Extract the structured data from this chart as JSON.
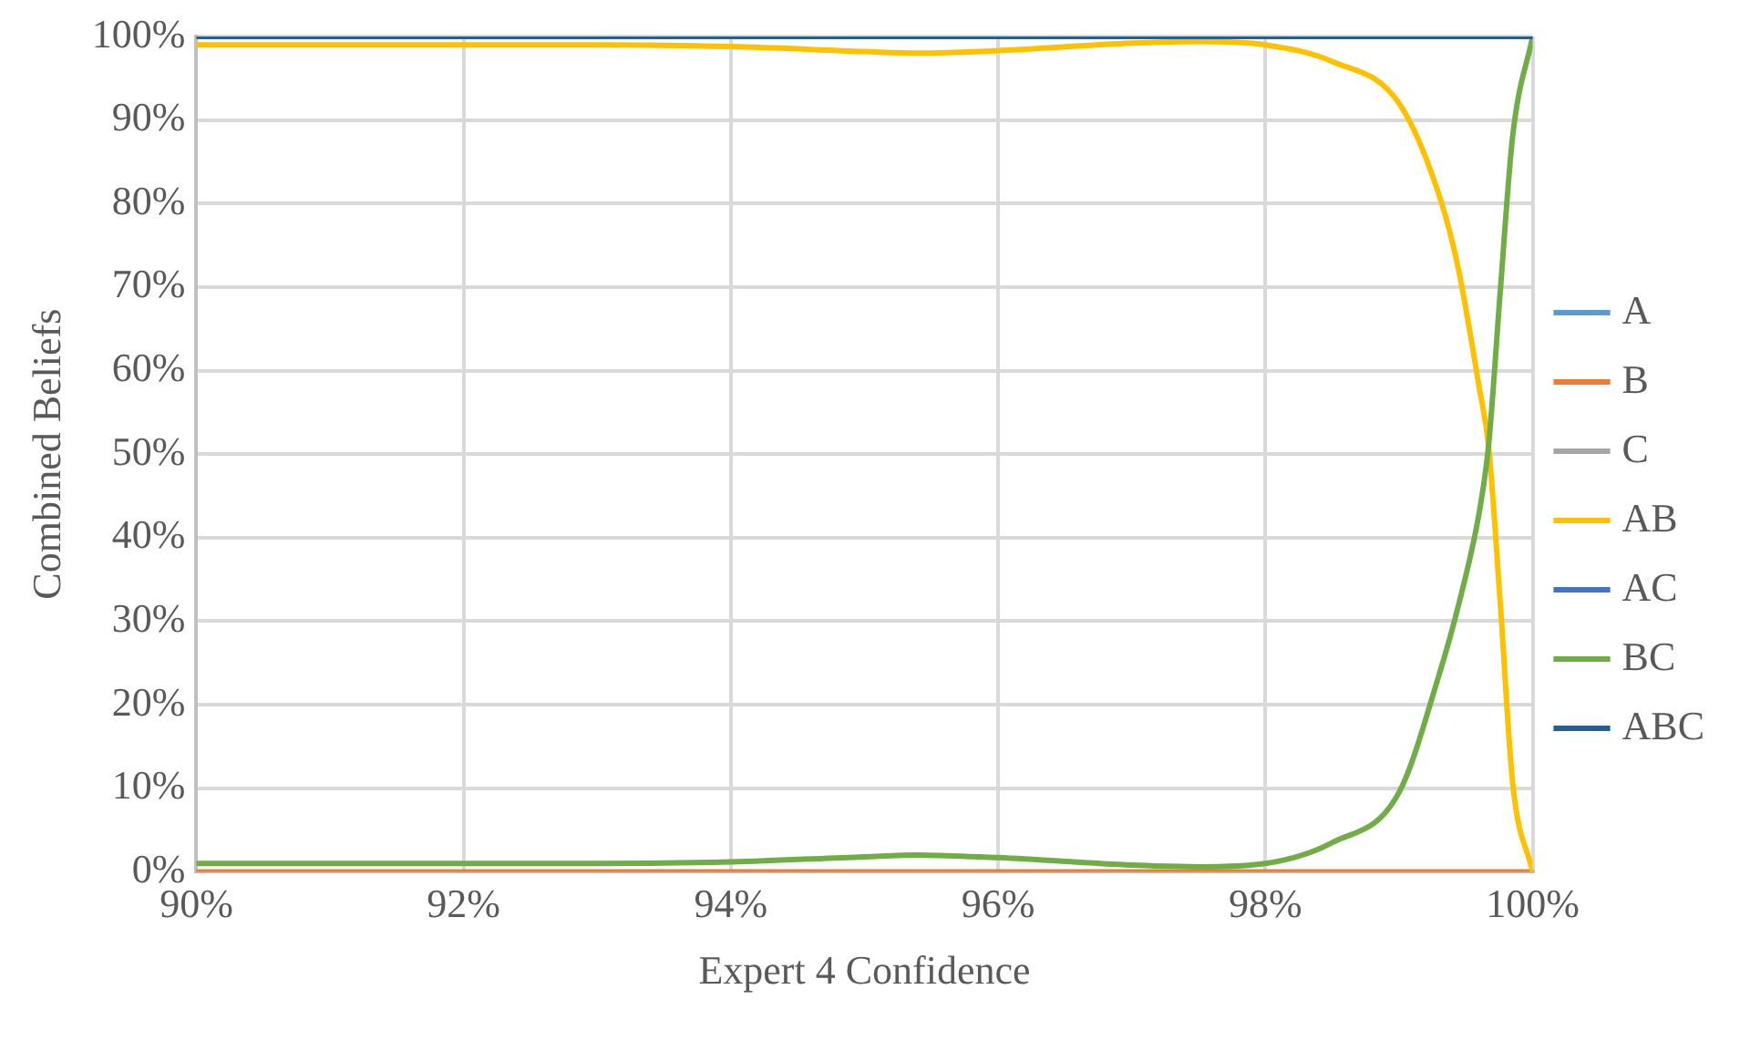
{
  "chart_data": {
    "type": "line",
    "xlabel": "Expert 4 Confidence",
    "ylabel": "Combined Beliefs",
    "x": [
      90,
      91,
      92,
      93,
      94,
      95,
      95.4,
      96,
      97,
      97.5,
      98,
      98.5,
      99,
      99.3,
      99.44,
      99.6,
      99.67,
      99.76,
      99.85,
      100
    ],
    "series": [
      {
        "name": "A",
        "color": "#5b9bd5",
        "values": [
          null,
          null,
          null,
          null,
          null,
          null,
          null,
          null,
          null,
          null,
          null,
          null,
          null,
          null,
          null,
          null,
          null,
          null,
          null,
          null
        ]
      },
      {
        "name": "B",
        "color": "#ed7d31",
        "values": [
          0,
          0,
          0,
          0,
          0,
          0,
          0,
          0,
          0,
          0,
          0,
          0,
          0,
          0,
          0,
          0,
          0,
          0,
          0,
          0
        ]
      },
      {
        "name": "C",
        "color": "#a5a5a5",
        "values": [
          null,
          null,
          null,
          null,
          null,
          null,
          null,
          null,
          null,
          null,
          null,
          null,
          null,
          null,
          null,
          null,
          null,
          null,
          null,
          null
        ]
      },
      {
        "name": "AB",
        "color": "#ffc000",
        "values": [
          99,
          99,
          99,
          99,
          98.8,
          98.2,
          98,
          98.3,
          99.2,
          99.4,
          99,
          97,
          92,
          81,
          72.5,
          58,
          51,
          31.6,
          10.7,
          0
        ]
      },
      {
        "name": "AC",
        "color": "#4472c4",
        "values": [
          null,
          null,
          null,
          null,
          null,
          null,
          null,
          null,
          null,
          null,
          null,
          null,
          null,
          null,
          null,
          null,
          null,
          null,
          null,
          null
        ]
      },
      {
        "name": "BC",
        "color": "#70ad47",
        "values": [
          1,
          1,
          1,
          1,
          1.2,
          1.8,
          2,
          1.7,
          0.8,
          0.6,
          1,
          3.5,
          9.5,
          23.6,
          31.6,
          43,
          51,
          70,
          88,
          100
        ]
      },
      {
        "name": "ABC",
        "color": "#255e91",
        "values": [
          100,
          100,
          100,
          100,
          100,
          100,
          100,
          100,
          100,
          100,
          100,
          100,
          100,
          100,
          100,
          100,
          100,
          100,
          100,
          100
        ]
      }
    ],
    "xlim": [
      90,
      100
    ],
    "xticks": [
      {
        "value": 90,
        "label": "90%"
      },
      {
        "value": 92,
        "label": "92%"
      },
      {
        "value": 94,
        "label": "94%"
      },
      {
        "value": 96,
        "label": "96%"
      },
      {
        "value": 98,
        "label": "98%"
      },
      {
        "value": 100,
        "label": "100%"
      }
    ],
    "ylim": [
      0,
      100
    ],
    "yticks": [
      {
        "value": 0,
        "label": "0%"
      },
      {
        "value": 10,
        "label": "10%"
      },
      {
        "value": 20,
        "label": "20%"
      },
      {
        "value": 30,
        "label": "30%"
      },
      {
        "value": 40,
        "label": "40%"
      },
      {
        "value": 50,
        "label": "50%"
      },
      {
        "value": 60,
        "label": "60%"
      },
      {
        "value": 70,
        "label": "70%"
      },
      {
        "value": 80,
        "label": "80%"
      },
      {
        "value": 90,
        "label": "90%"
      },
      {
        "value": 100,
        "label": "100%"
      }
    ],
    "grid": true,
    "legend": "right",
    "marker": "none",
    "line_style": "solid"
  }
}
